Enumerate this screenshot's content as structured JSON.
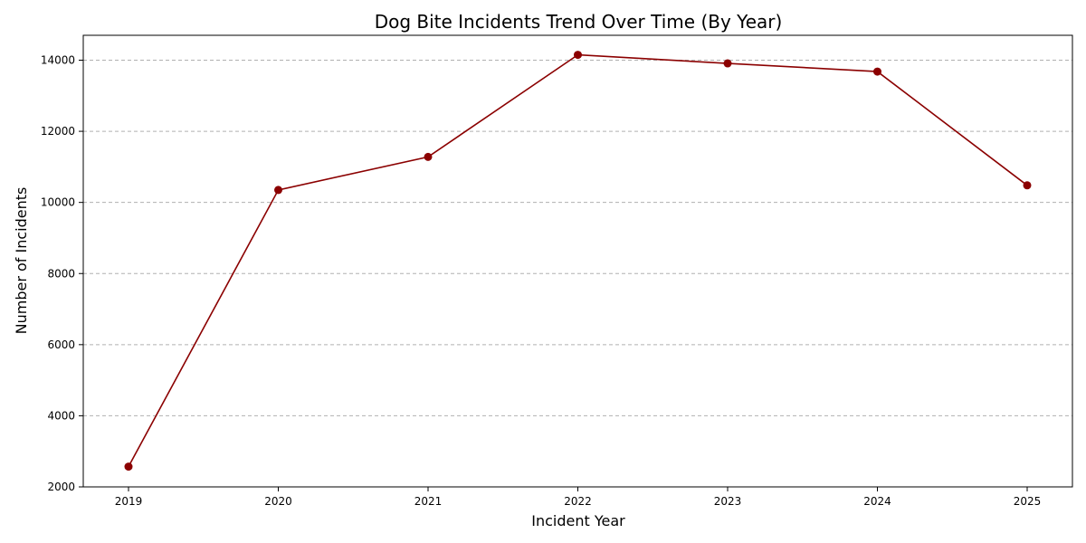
{
  "chart_data": {
    "type": "line",
    "title": "Dog Bite Incidents Trend Over Time (By Year)",
    "xlabel": "Incident Year",
    "ylabel": "Number of Incidents",
    "x": [
      "2019",
      "2020",
      "2021",
      "2022",
      "2023",
      "2024",
      "2025"
    ],
    "series": [
      {
        "values": [
          2570,
          10350,
          11280,
          14150,
          13910,
          13680,
          10480
        ]
      }
    ],
    "ylim": [
      2000,
      14700
    ],
    "yticks": [
      2000,
      4000,
      6000,
      8000,
      10000,
      12000,
      14000
    ],
    "grid": "horizontal dashed",
    "line_color": "#8b0000",
    "marker": "circle"
  }
}
